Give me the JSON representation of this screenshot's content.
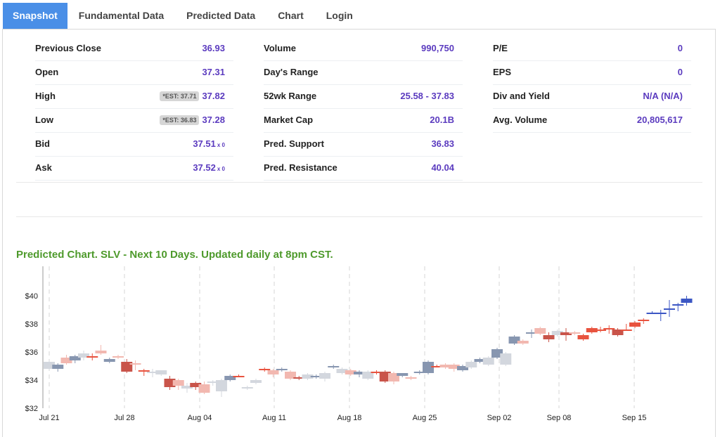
{
  "tabs": [
    {
      "label": "Snapshot",
      "active": true
    },
    {
      "label": "Fundamental Data",
      "active": false
    },
    {
      "label": "Predicted Data",
      "active": false
    },
    {
      "label": "Chart",
      "active": false
    },
    {
      "label": "Login",
      "active": false
    }
  ],
  "stats": {
    "col1": [
      {
        "label": "Previous Close",
        "value": "36.93"
      },
      {
        "label": "Open",
        "value": "37.31"
      },
      {
        "label": "High",
        "est": "*EST: 37.71",
        "value": "37.82"
      },
      {
        "label": "Low",
        "est": "*EST: 36.83",
        "value": "37.28"
      },
      {
        "label": "Bid",
        "value": "37.51",
        "suffix": "x 0"
      },
      {
        "label": "Ask",
        "value": "37.52",
        "suffix": "x 0"
      }
    ],
    "col2": [
      {
        "label": "Volume",
        "value": "990,750"
      },
      {
        "label": "Day's Range",
        "value": ""
      },
      {
        "label": "52wk Range",
        "value": "25.58 - 37.83"
      },
      {
        "label": "Market Cap",
        "value": "20.1B"
      },
      {
        "label": "Pred. Support",
        "value": "36.83"
      },
      {
        "label": "Pred. Resistance",
        "value": "40.04"
      }
    ],
    "col3": [
      {
        "label": "P/E",
        "value": "0"
      },
      {
        "label": "EPS",
        "value": "0"
      },
      {
        "label": "Div and Yield",
        "value": "N/A (N/A)"
      },
      {
        "label": "Avg. Volume",
        "value": "20,805,617"
      }
    ]
  },
  "chart_title": "Predicted Chart. SLV - Next 10 Days. Updated daily at 8pm CST.",
  "colors": {
    "up": "#e8533f",
    "down": "#c9544a",
    "light_up": "#f2b8b0",
    "grey": "#d3d7de",
    "navy": "#8796b0",
    "pred": "#3c57c4"
  },
  "chart_data": {
    "type": "candlestick",
    "title": "Predicted Chart. SLV - Next 10 Days. Updated daily at 8pm CST.",
    "y_ticks": [
      "$32",
      "$34",
      "$36",
      "$38",
      "$40"
    ],
    "ylim": [
      32,
      41
    ],
    "x_ticks": [
      "Jul 21",
      "Jul 28",
      "Aug 04",
      "Aug 11",
      "Aug 18",
      "Aug 25",
      "Sep 02",
      "Sep 08",
      "Sep 15"
    ],
    "grid": "vertical dashed",
    "candles": [
      {
        "o": 34.8,
        "c": 35.3,
        "h": 35.4,
        "l": 34.7,
        "s": "grey"
      },
      {
        "o": 35.1,
        "c": 34.8,
        "h": 35.2,
        "l": 34.6,
        "s": "navy"
      },
      {
        "o": 35.2,
        "c": 35.6,
        "h": 35.8,
        "l": 35.1,
        "s": "lightup"
      },
      {
        "o": 35.7,
        "c": 35.4,
        "h": 35.8,
        "l": 35.2,
        "s": "navy"
      },
      {
        "o": 35.6,
        "c": 35.9,
        "h": 36.1,
        "l": 35.4,
        "s": "grey"
      },
      {
        "o": 35.6,
        "c": 35.7,
        "h": 35.9,
        "l": 35.4,
        "s": "up"
      },
      {
        "o": 35.9,
        "c": 36.1,
        "h": 36.5,
        "l": 35.8,
        "s": "lightup"
      },
      {
        "o": 35.5,
        "c": 35.3,
        "h": 35.6,
        "l": 35.2,
        "s": "navy"
      },
      {
        "o": 35.6,
        "c": 35.7,
        "h": 35.8,
        "l": 35.5,
        "s": "lightup"
      },
      {
        "o": 35.3,
        "c": 34.6,
        "h": 35.5,
        "l": 34.5,
        "s": "down"
      },
      {
        "o": 35.2,
        "c": 35.2,
        "h": 35.4,
        "l": 34.7,
        "s": "lightup"
      },
      {
        "o": 34.7,
        "c": 34.7,
        "h": 34.8,
        "l": 34.3,
        "s": "up"
      },
      {
        "o": 34.6,
        "c": 34.6,
        "h": 34.8,
        "l": 34.2,
        "s": "grey"
      },
      {
        "o": 34.7,
        "c": 34.4,
        "h": 34.7,
        "l": 34.3,
        "s": "grey"
      },
      {
        "o": 34.1,
        "c": 33.5,
        "h": 34.3,
        "l": 33.3,
        "s": "down"
      },
      {
        "o": 34.0,
        "c": 33.6,
        "h": 34.1,
        "l": 33.3,
        "s": "lightup"
      },
      {
        "o": 33.6,
        "c": 33.4,
        "h": 33.8,
        "l": 33.1,
        "s": "grey"
      },
      {
        "o": 33.8,
        "c": 33.5,
        "h": 33.9,
        "l": 33.3,
        "s": "down"
      },
      {
        "o": 33.7,
        "c": 33.1,
        "h": 33.9,
        "l": 33.0,
        "s": "lightup"
      },
      {
        "o": 33.9,
        "c": 33.8,
        "h": 34.0,
        "l": 33.6,
        "s": "grey"
      },
      {
        "o": 33.2,
        "c": 34.0,
        "h": 34.1,
        "l": 32.8,
        "s": "grey"
      },
      {
        "o": 34.0,
        "c": 34.3,
        "h": 34.4,
        "l": 33.9,
        "s": "navy"
      },
      {
        "o": 34.3,
        "c": 34.3,
        "h": 34.4,
        "l": 34.2,
        "s": "up"
      },
      {
        "o": 33.4,
        "c": 33.5,
        "h": 33.6,
        "l": 33.3,
        "s": "grey"
      },
      {
        "o": 34.0,
        "c": 33.8,
        "h": 34.1,
        "l": 33.7,
        "s": "grey"
      },
      {
        "o": 34.7,
        "c": 34.8,
        "h": 34.9,
        "l": 34.6,
        "s": "up"
      },
      {
        "o": 34.4,
        "c": 34.7,
        "h": 34.8,
        "l": 34.2,
        "s": "lightup"
      },
      {
        "o": 34.8,
        "c": 34.7,
        "h": 34.9,
        "l": 34.6,
        "s": "navy"
      },
      {
        "o": 34.6,
        "c": 34.1,
        "h": 34.7,
        "l": 34.0,
        "s": "lightup"
      },
      {
        "o": 34.2,
        "c": 34.1,
        "h": 34.3,
        "l": 34.0,
        "s": "down"
      },
      {
        "o": 34.1,
        "c": 34.4,
        "h": 34.5,
        "l": 34.0,
        "s": "grey"
      },
      {
        "o": 34.3,
        "c": 34.2,
        "h": 34.4,
        "l": 34.1,
        "s": "navy"
      },
      {
        "o": 34.1,
        "c": 34.5,
        "h": 34.6,
        "l": 33.9,
        "s": "grey"
      },
      {
        "o": 34.9,
        "c": 35.0,
        "h": 35.1,
        "l": 34.8,
        "s": "navy"
      },
      {
        "o": 34.5,
        "c": 34.8,
        "h": 34.9,
        "l": 34.4,
        "s": "grey"
      },
      {
        "o": 34.4,
        "c": 34.7,
        "h": 34.8,
        "l": 34.3,
        "s": "lightup"
      },
      {
        "o": 34.6,
        "c": 34.4,
        "h": 34.7,
        "l": 34.2,
        "s": "navy"
      },
      {
        "o": 34.6,
        "c": 34.1,
        "h": 34.7,
        "l": 34.0,
        "s": "grey"
      },
      {
        "o": 34.6,
        "c": 34.5,
        "h": 34.7,
        "l": 34.4,
        "s": "up"
      },
      {
        "o": 34.6,
        "c": 33.9,
        "h": 34.7,
        "l": 33.8,
        "s": "down"
      },
      {
        "o": 33.9,
        "c": 34.5,
        "h": 34.6,
        "l": 33.7,
        "s": "lightup"
      },
      {
        "o": 34.5,
        "c": 34.3,
        "h": 34.5,
        "l": 34.2,
        "s": "navy"
      },
      {
        "o": 34.2,
        "c": 34.2,
        "h": 34.3,
        "l": 34.0,
        "s": "lightup"
      },
      {
        "o": 34.5,
        "c": 34.6,
        "h": 34.7,
        "l": 34.4,
        "s": "navy"
      },
      {
        "o": 34.5,
        "c": 35.3,
        "h": 35.4,
        "l": 34.4,
        "s": "navy"
      },
      {
        "o": 35.0,
        "c": 35.0,
        "h": 35.1,
        "l": 34.9,
        "s": "up"
      },
      {
        "o": 35.1,
        "c": 34.9,
        "h": 35.2,
        "l": 34.8,
        "s": "lightup"
      },
      {
        "o": 35.1,
        "c": 34.8,
        "h": 35.2,
        "l": 34.6,
        "s": "lightup"
      },
      {
        "o": 35.0,
        "c": 34.7,
        "h": 35.1,
        "l": 34.6,
        "s": "navy"
      },
      {
        "o": 34.9,
        "c": 35.3,
        "h": 35.4,
        "l": 34.8,
        "s": "grey"
      },
      {
        "o": 35.3,
        "c": 35.5,
        "h": 35.6,
        "l": 35.2,
        "s": "navy"
      },
      {
        "o": 35.1,
        "c": 35.6,
        "h": 35.7,
        "l": 35.0,
        "s": "grey"
      },
      {
        "o": 35.6,
        "c": 36.2,
        "h": 36.3,
        "l": 35.5,
        "s": "navy"
      },
      {
        "o": 35.1,
        "c": 35.9,
        "h": 36.0,
        "l": 35.0,
        "s": "grey"
      },
      {
        "o": 36.6,
        "c": 37.1,
        "h": 37.2,
        "l": 36.5,
        "s": "navy"
      },
      {
        "o": 36.6,
        "c": 36.8,
        "h": 36.9,
        "l": 36.5,
        "s": "lightup"
      },
      {
        "o": 37.3,
        "c": 37.4,
        "h": 37.6,
        "l": 37.0,
        "s": "navy"
      },
      {
        "o": 37.3,
        "c": 37.7,
        "h": 37.8,
        "l": 37.2,
        "s": "lightup"
      },
      {
        "o": 37.2,
        "c": 36.9,
        "h": 37.4,
        "l": 36.7,
        "s": "down"
      },
      {
        "o": 37.2,
        "c": 37.5,
        "h": 37.6,
        "l": 37.1,
        "s": "grey"
      },
      {
        "o": 37.2,
        "c": 37.4,
        "h": 37.7,
        "l": 36.8,
        "s": "down"
      },
      {
        "o": 37.4,
        "c": 37.4,
        "h": 37.5,
        "l": 37.2,
        "s": "lightup"
      },
      {
        "o": 36.9,
        "c": 37.2,
        "h": 37.3,
        "l": 36.8,
        "s": "up"
      },
      {
        "o": 37.4,
        "c": 37.7,
        "h": 37.8,
        "l": 37.3,
        "s": "up"
      },
      {
        "o": 37.6,
        "c": 37.6,
        "h": 37.8,
        "l": 37.4,
        "s": "up"
      },
      {
        "o": 37.6,
        "c": 37.7,
        "h": 37.9,
        "l": 37.3,
        "s": "up"
      },
      {
        "o": 37.2,
        "c": 37.6,
        "h": 37.7,
        "l": 37.1,
        "s": "down"
      },
      {
        "o": 37.6,
        "c": 37.6,
        "h": 38.0,
        "l": 37.5,
        "s": "up"
      },
      {
        "o": 37.8,
        "c": 38.1,
        "h": 38.2,
        "l": 37.7,
        "s": "up"
      },
      {
        "o": 38.2,
        "c": 38.3,
        "h": 38.4,
        "l": 38.0,
        "s": "up"
      },
      {
        "o": 38.8,
        "c": 38.8,
        "h": 38.9,
        "l": 38.7,
        "s": "pred"
      },
      {
        "o": 38.7,
        "c": 38.8,
        "h": 39.0,
        "l": 38.2,
        "s": "pred"
      },
      {
        "o": 39.1,
        "c": 39.1,
        "h": 39.7,
        "l": 38.5,
        "s": "pred"
      },
      {
        "o": 39.3,
        "c": 39.4,
        "h": 39.5,
        "l": 38.9,
        "s": "pred"
      },
      {
        "o": 39.5,
        "c": 39.8,
        "h": 40.0,
        "l": 39.3,
        "s": "pred"
      }
    ]
  }
}
